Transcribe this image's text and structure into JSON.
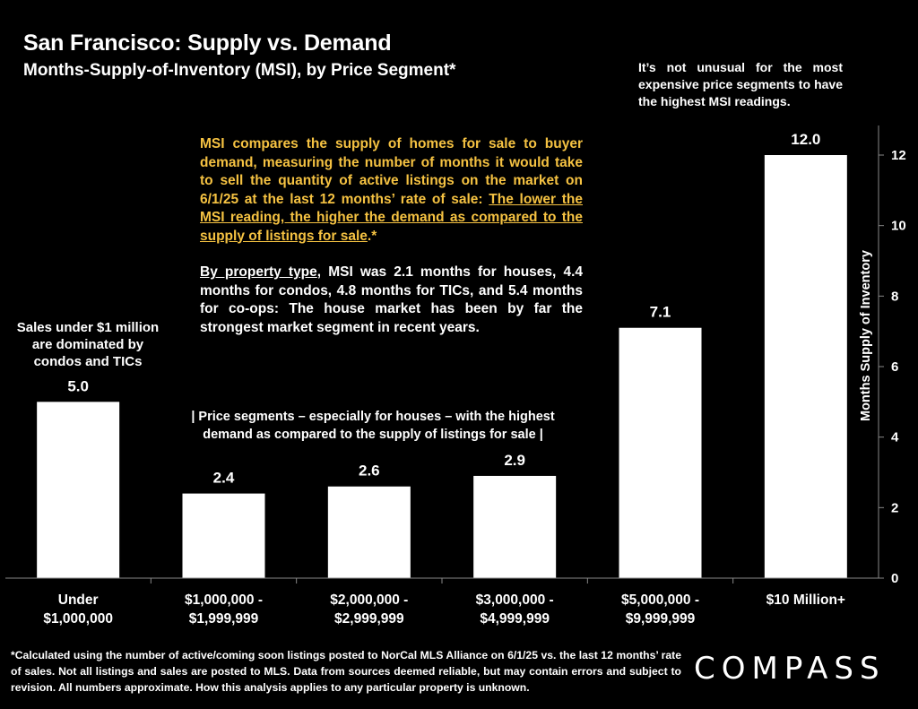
{
  "title": "San Francisco: Supply vs. Demand",
  "subtitle": "Months-Supply-of-Inventory (MSI), by Price Segment*",
  "note_right": "It’s not unusual for the most expensive price segments to have the highest MSI readings.",
  "msi_box": {
    "intro": "MSI compares the supply of homes for sale to buyer demand, measuring the number of months it would take to sell the quantity of active listings on the market on 6/1/25 at the last 12 months’ rate of sale: ",
    "underlined": "The lower the MSI reading, the higher the demand as compared to the supply of listings for sale",
    "tail": ".*",
    "property_type_label": "By property type",
    "property_type_text": ", MSI was 2.1 months for houses, 4.4 months for condos, 4.8 months for TICs, and 5.4 months for co-ops:  The house market has been by far the strongest market segment in recent years."
  },
  "left_note": "Sales under $1 million are dominated by condos and TICs",
  "mid_note": "| Price segments – especially for houses – with the highest demand as compared to the supply of listings for sale |",
  "footnote": "*Calculated using the number of active/coming soon listings posted to NorCal MLS Alliance on 6/1/25 vs. the last 12 months’ rate of sales. Not all listings and sales are posted to MLS. Data from sources deemed reliable, but may contain errors and subject to revision. All numbers approximate. How this analysis applies to any particular property is unknown.",
  "logo": "COMPASS",
  "colors": {
    "background": "#000000",
    "bars": "#ffffff",
    "highlight_text": "#f5c242",
    "axis": "#888888"
  },
  "chart_data": {
    "type": "bar",
    "title": "San Francisco: Supply vs. Demand",
    "subtitle": "Months-Supply-of-Inventory (MSI), by Price Segment*",
    "categories": [
      [
        "Under",
        "$1,000,000"
      ],
      [
        "$1,000,000 -",
        "$1,999,999"
      ],
      [
        "$2,000,000 -",
        "$2,999,999"
      ],
      [
        "$3,000,000 -",
        "$4,999,999"
      ],
      [
        "$5,000,000 -",
        "$9,999,999"
      ],
      [
        "$10 Million+"
      ]
    ],
    "values": [
      5.0,
      2.4,
      2.6,
      2.9,
      7.1,
      12.0
    ],
    "data_labels": [
      "5.0",
      "2.4",
      "2.6",
      "2.9",
      "7.1",
      "12.0"
    ],
    "ylabel": "Months Supply of Inventory",
    "ylim": [
      0,
      13
    ],
    "yticks": [
      0,
      2,
      4,
      6,
      8,
      10,
      12
    ],
    "y_axis_side": "right",
    "grid": false,
    "legend": "none"
  }
}
